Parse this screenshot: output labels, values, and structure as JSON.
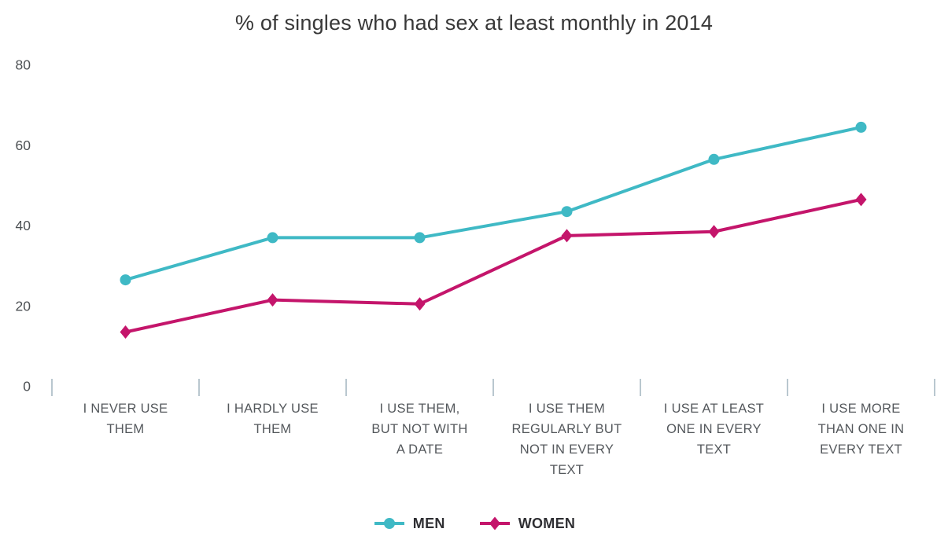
{
  "title": "% of singles who had sex at least monthly in 2014",
  "colors": {
    "men": "#3fb9c5",
    "women": "#c4156b",
    "tick_mark": "#b9c7cf",
    "title_text": "#383838",
    "axis_text": "#54585c"
  },
  "chart_data": {
    "type": "line",
    "title": "% of singles who had sex at least monthly in 2014",
    "categories": [
      "I NEVER USE THEM",
      "I HARDLY USE THEM",
      "I USE THEM, BUT NOT WITH A DATE",
      "I USE THEM REGULARLY BUT NOT IN EVERY TEXT",
      "I USE AT LEAST ONE IN EVERY TEXT",
      "I USE MORE THAN ONE IN EVERY TEXT"
    ],
    "category_lines": [
      [
        "I NEVER USE",
        "THEM"
      ],
      [
        "I HARDLY USE",
        "THEM"
      ],
      [
        "I USE THEM,",
        "BUT NOT WITH",
        "A DATE"
      ],
      [
        "I USE THEM",
        "REGULARLY BUT",
        "NOT IN EVERY",
        "TEXT"
      ],
      [
        "I USE AT LEAST",
        "ONE IN EVERY",
        "TEXT"
      ],
      [
        "I USE MORE",
        "THAN ONE IN",
        "EVERY TEXT"
      ]
    ],
    "series": [
      {
        "name": "MEN",
        "marker": "circle",
        "color": "#3fb9c5",
        "values": [
          26.5,
          37,
          37,
          43.5,
          56.5,
          64.5
        ]
      },
      {
        "name": "WOMEN",
        "marker": "diamond",
        "color": "#c4156b",
        "values": [
          13.5,
          21.5,
          20.5,
          37.5,
          38.5,
          46.5
        ]
      }
    ],
    "xlabel": "",
    "ylabel": "",
    "y_ticks": [
      0,
      20,
      40,
      60,
      80
    ],
    "ylim": [
      0,
      80
    ],
    "grid": false,
    "legend_position": "bottom"
  }
}
